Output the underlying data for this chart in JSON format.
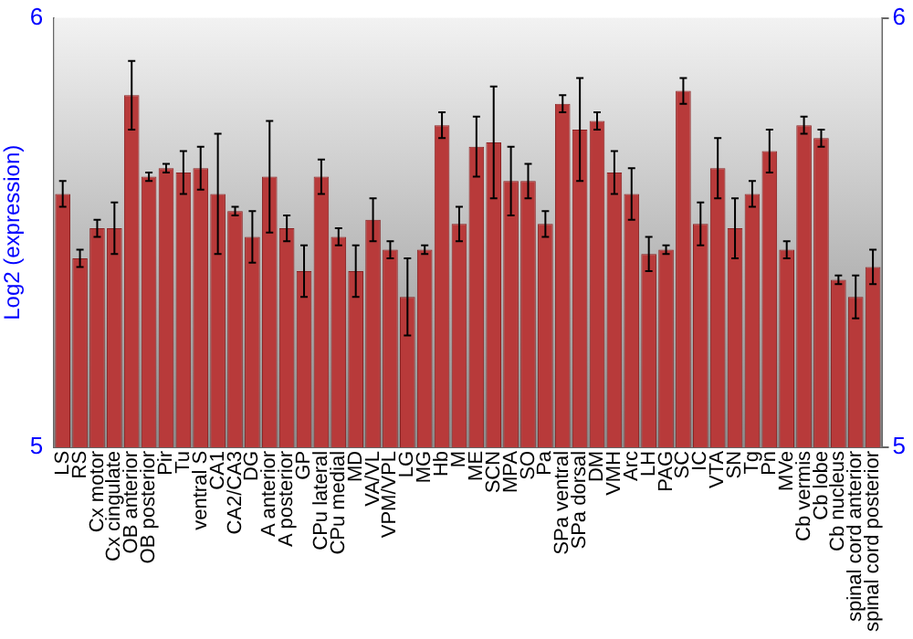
{
  "chart_data": {
    "type": "bar",
    "ylabel": "Log2 (expression)",
    "categories": [
      "LS",
      "RS",
      "Cx motor",
      "Cx cingulate",
      "OB anterior",
      "OB posterior",
      "Pir",
      "Tu",
      "ventral S",
      "CA1",
      "CA2/CA3",
      "DG",
      "A anterior",
      "A posterior",
      "GP",
      "CPu lateral",
      "CPu medial",
      "MD",
      "VA/VL",
      "VPM/VPL",
      "LG",
      "MG",
      "Hb",
      "M",
      "ME",
      "SCN",
      "MPA",
      "SO",
      "Pa",
      "SPa ventral",
      "SPa dorsal",
      "DM",
      "VMH",
      "Arc",
      "LH",
      "PAG",
      "SC",
      "IC",
      "VTA",
      "SN",
      "Tg",
      "Pn",
      "MVe",
      "Cb vermis",
      "Cb lobe",
      "Cb nucleus",
      "spinal cord anterior",
      "spinal cord posterior"
    ],
    "values": [
      5.59,
      5.44,
      5.51,
      5.51,
      5.82,
      5.63,
      5.65,
      5.64,
      5.65,
      5.59,
      5.55,
      5.49,
      5.63,
      5.51,
      5.41,
      5.63,
      5.49,
      5.41,
      5.53,
      5.46,
      5.35,
      5.46,
      5.75,
      5.52,
      5.7,
      5.71,
      5.62,
      5.62,
      5.52,
      5.8,
      5.74,
      5.76,
      5.64,
      5.59,
      5.45,
      5.46,
      5.83,
      5.52,
      5.65,
      5.51,
      5.59,
      5.69,
      5.46,
      5.75,
      5.72,
      5.39,
      5.35,
      5.42
    ],
    "errors": [
      0.03,
      0.02,
      0.02,
      0.06,
      0.08,
      0.01,
      0.01,
      0.05,
      0.05,
      0.14,
      0.01,
      0.06,
      0.13,
      0.03,
      0.06,
      0.04,
      0.02,
      0.06,
      0.05,
      0.02,
      0.09,
      0.01,
      0.03,
      0.04,
      0.07,
      0.13,
      0.08,
      0.04,
      0.03,
      0.02,
      0.12,
      0.02,
      0.05,
      0.06,
      0.04,
      0.01,
      0.03,
      0.05,
      0.07,
      0.07,
      0.03,
      0.05,
      0.02,
      0.02,
      0.02,
      0.01,
      0.05,
      0.04
    ],
    "color": "#b83a3a",
    "ylim": [
      5,
      6
    ],
    "yticks": [
      5,
      6
    ],
    "y2lim": [
      5,
      6
    ],
    "y2ticks": [
      5,
      6
    ],
    "grid": false,
    "legend": false
  }
}
